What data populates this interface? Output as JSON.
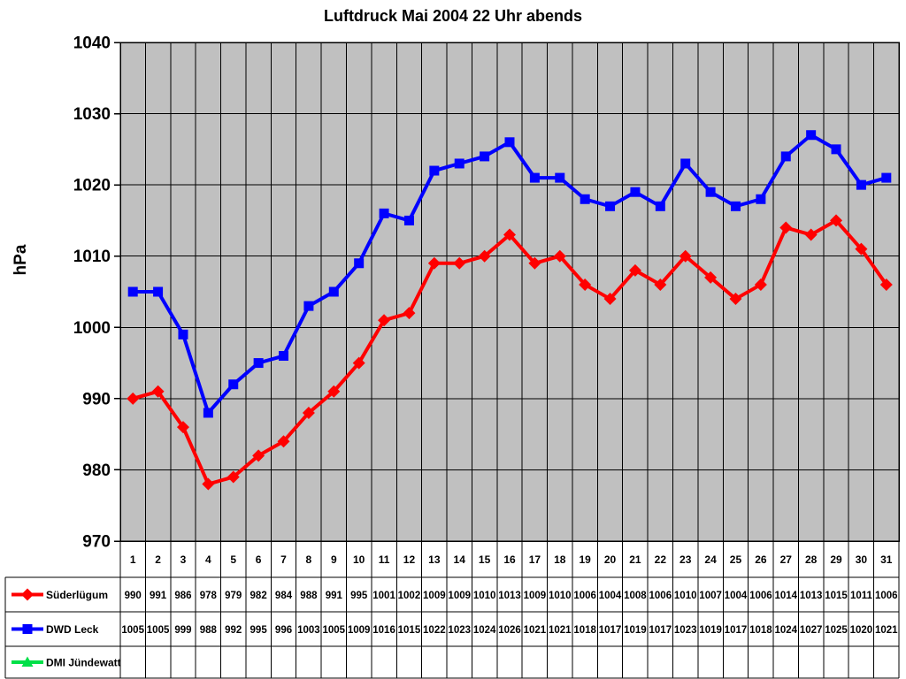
{
  "chart_data": {
    "type": "line",
    "title": "Luftdruck Mai 2004 22 Uhr abends",
    "ylabel": "hPa",
    "xlabel": "",
    "ylim": [
      970,
      1040
    ],
    "yticks": [
      970,
      980,
      990,
      1000,
      1010,
      1020,
      1030,
      1040
    ],
    "grid": "on",
    "plot_bg": "#C0C0C0",
    "grid_color": "#000000",
    "legend_position": "table-left",
    "categories": [
      1,
      2,
      3,
      4,
      5,
      6,
      7,
      8,
      9,
      10,
      11,
      12,
      13,
      14,
      15,
      16,
      17,
      18,
      19,
      20,
      21,
      22,
      23,
      24,
      25,
      26,
      27,
      28,
      29,
      30,
      31
    ],
    "series": [
      {
        "name": "Süderlügum",
        "color": "#FF0000",
        "marker": "diamond",
        "values": [
          990,
          991,
          986,
          978,
          979,
          982,
          984,
          988,
          991,
          995,
          1001,
          1002,
          1009,
          1009,
          1010,
          1013,
          1009,
          1010,
          1006,
          1004,
          1008,
          1006,
          1010,
          1007,
          1004,
          1006,
          1014,
          1013,
          1015,
          1011,
          1006
        ]
      },
      {
        "name": "DWD Leck",
        "color": "#0000FF",
        "marker": "square",
        "values": [
          1005,
          1005,
          999,
          988,
          992,
          995,
          996,
          1003,
          1005,
          1009,
          1016,
          1015,
          1022,
          1023,
          1024,
          1026,
          1021,
          1021,
          1018,
          1017,
          1019,
          1017,
          1023,
          1019,
          1017,
          1018,
          1024,
          1027,
          1025,
          1020,
          1021
        ]
      },
      {
        "name": "DMI Jündewatt",
        "color": "#00E048",
        "marker": "triangle",
        "values": []
      }
    ]
  }
}
